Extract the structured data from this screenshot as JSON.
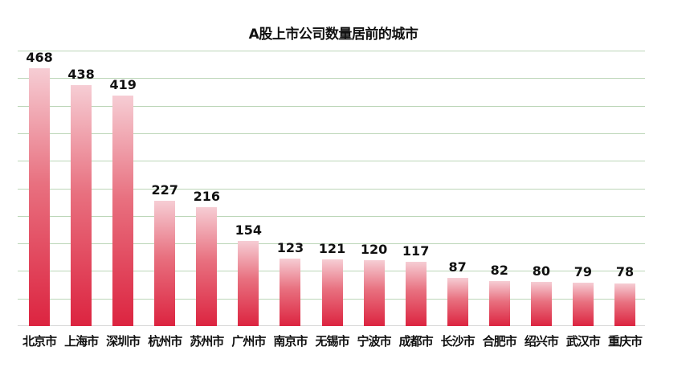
{
  "title": "A股上市公司数量居前的城市",
  "chart_data": {
    "type": "bar",
    "title": "A股上市公司数量居前的城市",
    "xlabel": "",
    "ylabel": "",
    "ylim": [
      0,
      500
    ],
    "grid": true,
    "gridline_step": 50,
    "legend": null,
    "categories": [
      "北京市",
      "上海市",
      "深圳市",
      "杭州市",
      "苏州市",
      "广州市",
      "南京市",
      "无锡市",
      "宁波市",
      "成都市",
      "长沙市",
      "合肥市",
      "绍兴市",
      "武汉市",
      "重庆市"
    ],
    "values": [
      468,
      438,
      419,
      227,
      216,
      154,
      123,
      121,
      120,
      117,
      87,
      82,
      80,
      79,
      78
    ],
    "bar_gradient": {
      "top": "#f6cdd4",
      "bottom": "#dc2440"
    },
    "grid_color": "#bcd6b8"
  }
}
